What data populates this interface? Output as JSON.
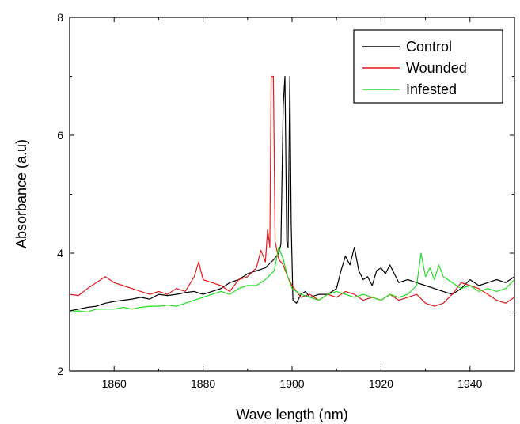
{
  "chart_data": {
    "type": "line",
    "title": "",
    "xlabel": "Wave length (nm)",
    "ylabel": "Absorbance (a.u)",
    "xlim": [
      1850,
      1950
    ],
    "ylim": [
      2,
      8
    ],
    "xticks": [
      1860,
      1880,
      1900,
      1920,
      1940
    ],
    "yticks": [
      2,
      4,
      6,
      8
    ],
    "grid": false,
    "legend_position": "top-right",
    "series": [
      {
        "name": "Control",
        "color": "#000000",
        "points": [
          [
            1850,
            3.02
          ],
          [
            1852,
            3.05
          ],
          [
            1854,
            3.08
          ],
          [
            1856,
            3.1
          ],
          [
            1858,
            3.15
          ],
          [
            1860,
            3.18
          ],
          [
            1862,
            3.2
          ],
          [
            1864,
            3.22
          ],
          [
            1866,
            3.25
          ],
          [
            1868,
            3.22
          ],
          [
            1870,
            3.3
          ],
          [
            1872,
            3.28
          ],
          [
            1874,
            3.3
          ],
          [
            1876,
            3.33
          ],
          [
            1878,
            3.35
          ],
          [
            1880,
            3.3
          ],
          [
            1882,
            3.35
          ],
          [
            1884,
            3.4
          ],
          [
            1886,
            3.5
          ],
          [
            1888,
            3.55
          ],
          [
            1890,
            3.65
          ],
          [
            1892,
            3.7
          ],
          [
            1894,
            3.75
          ],
          [
            1896,
            3.9
          ],
          [
            1897,
            4.0
          ],
          [
            1897.5,
            4.15
          ],
          [
            1898,
            6.5
          ],
          [
            1898.4,
            7.0
          ],
          [
            1898.8,
            4.2
          ],
          [
            1899.1,
            4.1
          ],
          [
            1899.5,
            7.0
          ],
          [
            1899.8,
            4.5
          ],
          [
            1900.2,
            3.2
          ],
          [
            1901,
            3.15
          ],
          [
            1902,
            3.3
          ],
          [
            1903,
            3.35
          ],
          [
            1904,
            3.25
          ],
          [
            1906,
            3.3
          ],
          [
            1908,
            3.3
          ],
          [
            1910,
            3.4
          ],
          [
            1911,
            3.7
          ],
          [
            1912,
            3.95
          ],
          [
            1913,
            3.8
          ],
          [
            1914,
            4.1
          ],
          [
            1915,
            3.7
          ],
          [
            1916,
            3.55
          ],
          [
            1917,
            3.6
          ],
          [
            1918,
            3.45
          ],
          [
            1919,
            3.7
          ],
          [
            1920,
            3.75
          ],
          [
            1921,
            3.65
          ],
          [
            1922,
            3.8
          ],
          [
            1924,
            3.5
          ],
          [
            1926,
            3.55
          ],
          [
            1928,
            3.5
          ],
          [
            1930,
            3.45
          ],
          [
            1932,
            3.4
          ],
          [
            1934,
            3.35
          ],
          [
            1936,
            3.3
          ],
          [
            1938,
            3.4
          ],
          [
            1940,
            3.55
          ],
          [
            1942,
            3.45
          ],
          [
            1944,
            3.5
          ],
          [
            1946,
            3.55
          ],
          [
            1948,
            3.5
          ],
          [
            1950,
            3.6
          ]
        ]
      },
      {
        "name": "Wounded",
        "color": "#e31a1c",
        "points": [
          [
            1850,
            3.3
          ],
          [
            1852,
            3.28
          ],
          [
            1854,
            3.4
          ],
          [
            1856,
            3.5
          ],
          [
            1858,
            3.6
          ],
          [
            1860,
            3.5
          ],
          [
            1862,
            3.45
          ],
          [
            1864,
            3.4
          ],
          [
            1866,
            3.35
          ],
          [
            1868,
            3.3
          ],
          [
            1870,
            3.35
          ],
          [
            1872,
            3.3
          ],
          [
            1874,
            3.4
          ],
          [
            1876,
            3.35
          ],
          [
            1878,
            3.6
          ],
          [
            1879,
            3.85
          ],
          [
            1880,
            3.55
          ],
          [
            1882,
            3.5
          ],
          [
            1884,
            3.45
          ],
          [
            1886,
            3.35
          ],
          [
            1888,
            3.55
          ],
          [
            1890,
            3.6
          ],
          [
            1892,
            3.75
          ],
          [
            1893,
            4.05
          ],
          [
            1894,
            3.85
          ],
          [
            1894.5,
            4.4
          ],
          [
            1895,
            4.1
          ],
          [
            1895.3,
            7.0
          ],
          [
            1895.8,
            7.0
          ],
          [
            1896.2,
            4.2
          ],
          [
            1897,
            3.9
          ],
          [
            1898,
            3.8
          ],
          [
            1899,
            3.6
          ],
          [
            1900,
            3.45
          ],
          [
            1901,
            3.35
          ],
          [
            1902,
            3.25
          ],
          [
            1904,
            3.3
          ],
          [
            1906,
            3.2
          ],
          [
            1908,
            3.3
          ],
          [
            1910,
            3.25
          ],
          [
            1912,
            3.35
          ],
          [
            1914,
            3.3
          ],
          [
            1916,
            3.2
          ],
          [
            1918,
            3.25
          ],
          [
            1920,
            3.2
          ],
          [
            1922,
            3.3
          ],
          [
            1924,
            3.2
          ],
          [
            1926,
            3.25
          ],
          [
            1928,
            3.3
          ],
          [
            1930,
            3.15
          ],
          [
            1932,
            3.1
          ],
          [
            1934,
            3.15
          ],
          [
            1936,
            3.3
          ],
          [
            1938,
            3.5
          ],
          [
            1940,
            3.45
          ],
          [
            1942,
            3.4
          ],
          [
            1944,
            3.3
          ],
          [
            1946,
            3.2
          ],
          [
            1948,
            3.15
          ],
          [
            1950,
            3.25
          ]
        ]
      },
      {
        "name": "Infested",
        "color": "#22e022",
        "points": [
          [
            1850,
            3.0
          ],
          [
            1852,
            3.02
          ],
          [
            1854,
            3.0
          ],
          [
            1856,
            3.05
          ],
          [
            1858,
            3.05
          ],
          [
            1860,
            3.05
          ],
          [
            1862,
            3.08
          ],
          [
            1864,
            3.05
          ],
          [
            1866,
            3.08
          ],
          [
            1868,
            3.1
          ],
          [
            1870,
            3.1
          ],
          [
            1872,
            3.12
          ],
          [
            1874,
            3.1
          ],
          [
            1876,
            3.15
          ],
          [
            1878,
            3.2
          ],
          [
            1880,
            3.25
          ],
          [
            1882,
            3.3
          ],
          [
            1884,
            3.35
          ],
          [
            1886,
            3.3
          ],
          [
            1888,
            3.4
          ],
          [
            1890,
            3.45
          ],
          [
            1892,
            3.45
          ],
          [
            1894,
            3.55
          ],
          [
            1896,
            3.7
          ],
          [
            1897,
            4.1
          ],
          [
            1898,
            3.9
          ],
          [
            1899,
            3.6
          ],
          [
            1900,
            3.4
          ],
          [
            1902,
            3.3
          ],
          [
            1904,
            3.25
          ],
          [
            1906,
            3.2
          ],
          [
            1908,
            3.3
          ],
          [
            1910,
            3.35
          ],
          [
            1912,
            3.3
          ],
          [
            1914,
            3.25
          ],
          [
            1916,
            3.3
          ],
          [
            1918,
            3.25
          ],
          [
            1920,
            3.2
          ],
          [
            1922,
            3.3
          ],
          [
            1924,
            3.25
          ],
          [
            1926,
            3.3
          ],
          [
            1928,
            3.45
          ],
          [
            1929,
            4.0
          ],
          [
            1930,
            3.6
          ],
          [
            1931,
            3.75
          ],
          [
            1932,
            3.55
          ],
          [
            1933,
            3.8
          ],
          [
            1934,
            3.6
          ],
          [
            1936,
            3.5
          ],
          [
            1938,
            3.4
          ],
          [
            1940,
            3.45
          ],
          [
            1942,
            3.35
          ],
          [
            1944,
            3.4
          ],
          [
            1946,
            3.35
          ],
          [
            1948,
            3.4
          ],
          [
            1950,
            3.55
          ]
        ]
      }
    ]
  }
}
